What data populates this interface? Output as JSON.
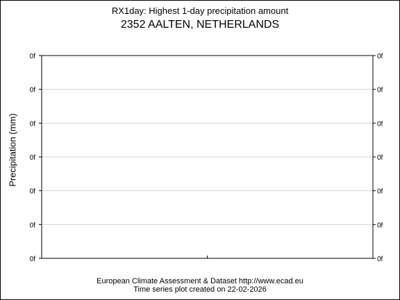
{
  "chart_data": {
    "type": "line",
    "title": "RX1day: Highest 1-day precipitation amount",
    "subtitle": "2352 AALTEN, NETHERLANDS",
    "xlabel": "",
    "ylabel": "Precipitation (mm)",
    "ytick_labels": [
      "0f",
      "0f",
      "0f",
      "0f",
      "0f",
      "0f",
      "0f"
    ],
    "series": [],
    "grid": true
  },
  "footer": {
    "line1": "European Climate Assessment & Dataset  http://www.ecad.eu",
    "line2": "Time series plot created on 22-02-2026"
  }
}
